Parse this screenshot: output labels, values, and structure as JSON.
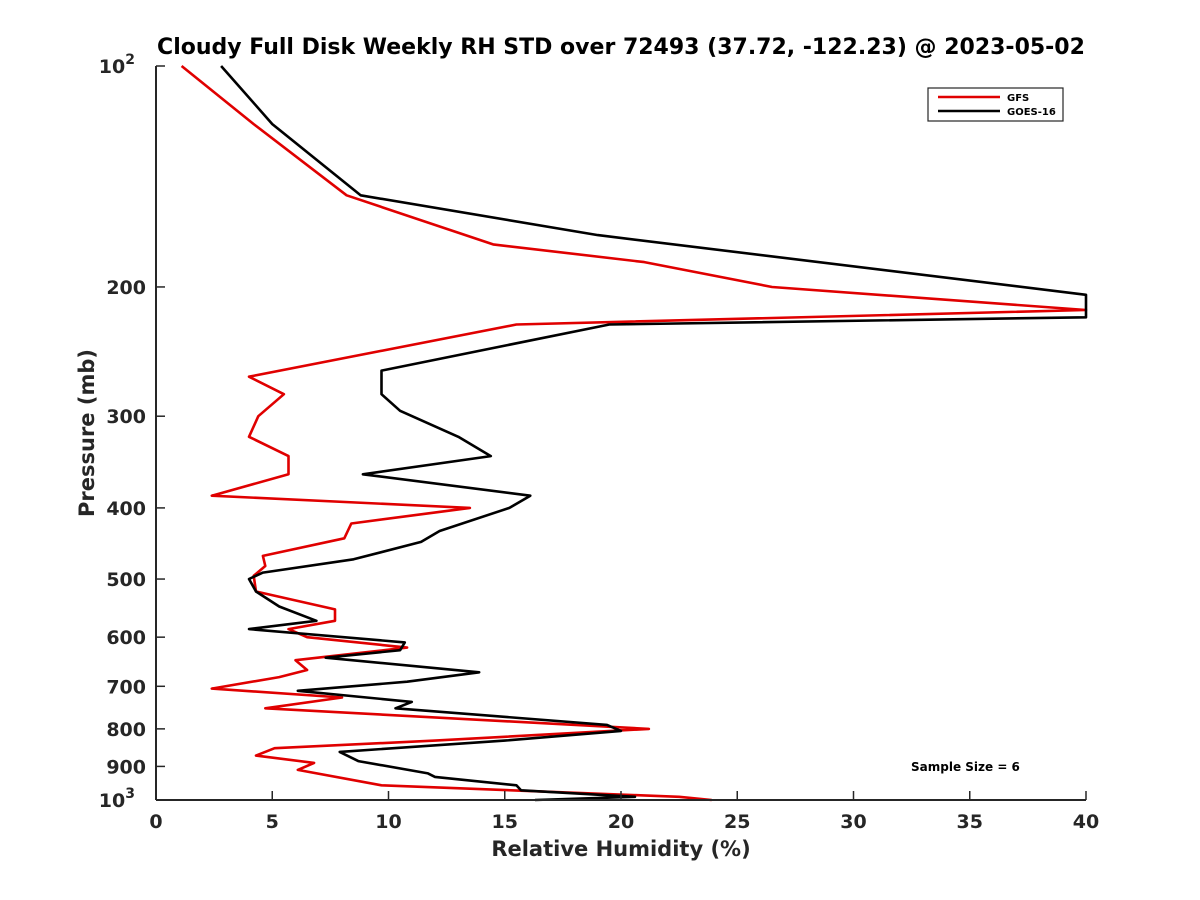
{
  "chart_data": {
    "type": "line",
    "title": "Cloudy Full Disk Weekly RH STD over 72493 (37.72, -122.23) @ 2023-05-02",
    "xlabel": "Relative Humidity (%)",
    "ylabel": "Pressure (mb)",
    "xlim": [
      0,
      40
    ],
    "ylim": [
      100,
      1000
    ],
    "y_scale": "log",
    "y_reversed": true,
    "grid": false,
    "legend_position": "top-right",
    "x_ticks": [
      0,
      5,
      10,
      15,
      20,
      25,
      30,
      35,
      40
    ],
    "y_ticks": [
      {
        "value": 100,
        "label": "10",
        "sup": "2"
      },
      {
        "value": 200,
        "label": "200",
        "sup": ""
      },
      {
        "value": 300,
        "label": "300",
        "sup": ""
      },
      {
        "value": 400,
        "label": "400",
        "sup": ""
      },
      {
        "value": 500,
        "label": "500",
        "sup": ""
      },
      {
        "value": 600,
        "label": "600",
        "sup": ""
      },
      {
        "value": 700,
        "label": "700",
        "sup": ""
      },
      {
        "value": 800,
        "label": "800",
        "sup": ""
      },
      {
        "value": 900,
        "label": "900",
        "sup": ""
      },
      {
        "value": 1000,
        "label": "10",
        "sup": "3"
      }
    ],
    "annotation": "Sample Size = 6",
    "series": [
      {
        "name": "GFS",
        "color": "#e00000",
        "points": [
          [
            1.1,
            100
          ],
          [
            4.2,
            120
          ],
          [
            8.2,
            150
          ],
          [
            14.5,
            175
          ],
          [
            21.0,
            185
          ],
          [
            26.5,
            200
          ],
          [
            40.0,
            215
          ],
          [
            15.5,
            225
          ],
          [
            4.0,
            265
          ],
          [
            5.5,
            280
          ],
          [
            4.4,
            300
          ],
          [
            4.0,
            320
          ],
          [
            5.7,
            340
          ],
          [
            5.7,
            360
          ],
          [
            2.4,
            385
          ],
          [
            13.5,
            400
          ],
          [
            8.4,
            420
          ],
          [
            8.1,
            440
          ],
          [
            4.6,
            465
          ],
          [
            4.7,
            480
          ],
          [
            4.2,
            495
          ],
          [
            4.3,
            520
          ],
          [
            7.7,
            550
          ],
          [
            7.7,
            570
          ],
          [
            5.7,
            585
          ],
          [
            6.5,
            600
          ],
          [
            10.8,
            620
          ],
          [
            6.0,
            645
          ],
          [
            6.5,
            665
          ],
          [
            5.3,
            680
          ],
          [
            2.4,
            705
          ],
          [
            8.0,
            725
          ],
          [
            4.7,
            750
          ],
          [
            21.2,
            800
          ],
          [
            12.0,
            830
          ],
          [
            5.1,
            850
          ],
          [
            4.3,
            870
          ],
          [
            6.8,
            890
          ],
          [
            6.1,
            910
          ],
          [
            9.7,
            955
          ],
          [
            20.7,
            985
          ],
          [
            22.5,
            990
          ],
          [
            23.9,
            1000
          ]
        ]
      },
      {
        "name": "GOES-16",
        "color": "#000000",
        "points": [
          [
            2.8,
            100
          ],
          [
            5.0,
            120
          ],
          [
            8.8,
            150
          ],
          [
            19.0,
            170
          ],
          [
            40.0,
            205
          ],
          [
            40.0,
            220
          ],
          [
            19.5,
            225
          ],
          [
            9.7,
            260
          ],
          [
            9.7,
            280
          ],
          [
            10.5,
            295
          ],
          [
            13.0,
            320
          ],
          [
            14.4,
            340
          ],
          [
            8.9,
            360
          ],
          [
            16.1,
            385
          ],
          [
            15.2,
            400
          ],
          [
            12.2,
            430
          ],
          [
            11.4,
            445
          ],
          [
            8.5,
            470
          ],
          [
            4.6,
            490
          ],
          [
            4.0,
            500
          ],
          [
            4.3,
            520
          ],
          [
            5.3,
            545
          ],
          [
            6.9,
            570
          ],
          [
            4.0,
            585
          ],
          [
            10.7,
            610
          ],
          [
            10.5,
            625
          ],
          [
            7.3,
            640
          ],
          [
            13.9,
            670
          ],
          [
            10.8,
            690
          ],
          [
            6.1,
            710
          ],
          [
            11.0,
            735
          ],
          [
            10.3,
            750
          ],
          [
            19.4,
            790
          ],
          [
            20.0,
            805
          ],
          [
            15.0,
            830
          ],
          [
            7.9,
            860
          ],
          [
            8.7,
            885
          ],
          [
            11.7,
            920
          ],
          [
            12.0,
            930
          ],
          [
            15.5,
            955
          ],
          [
            15.7,
            970
          ],
          [
            20.6,
            990
          ],
          [
            16.3,
            1000
          ]
        ]
      }
    ]
  }
}
